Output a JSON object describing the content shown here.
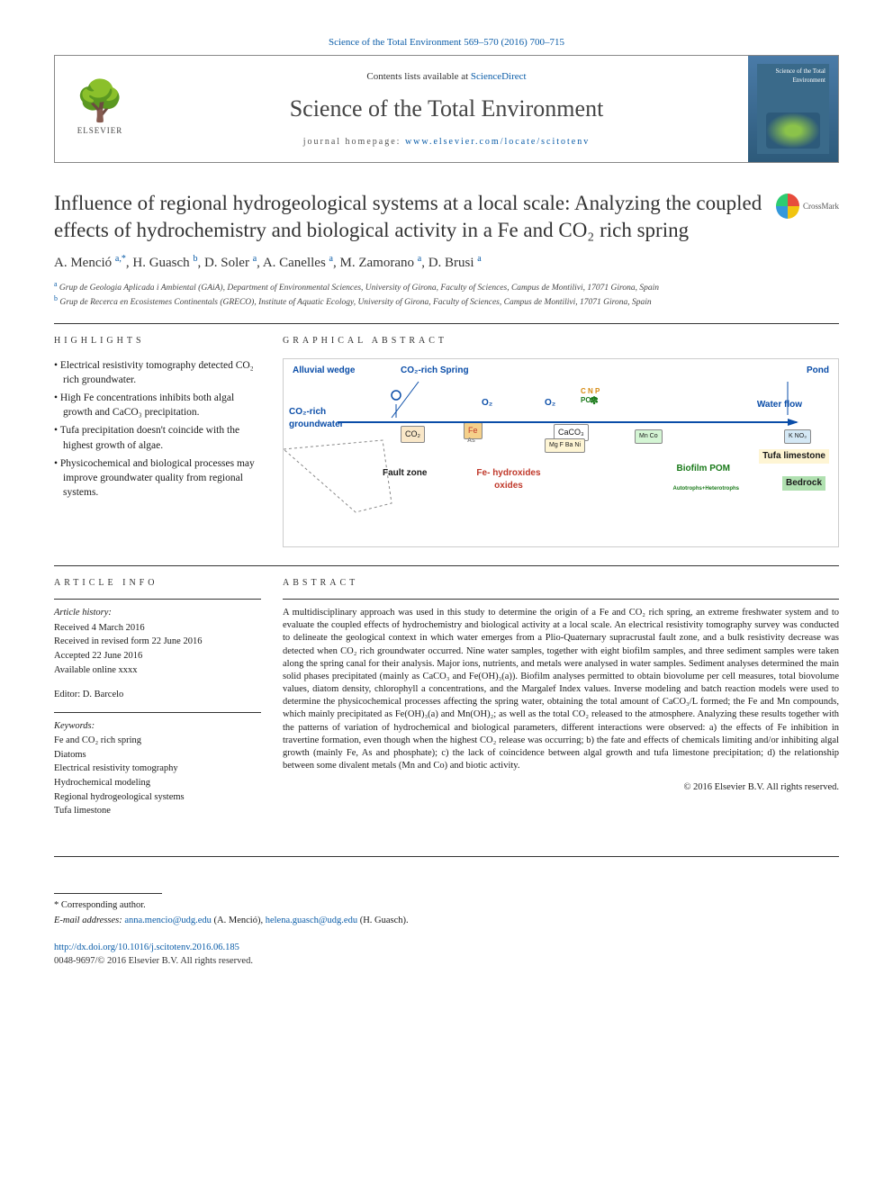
{
  "citation_top": "Science of the Total Environment 569–570 (2016) 700–715",
  "header": {
    "contents_prefix": "Contents lists available at ",
    "contents_link": "ScienceDirect",
    "journal_name": "Science of the Total Environment",
    "homepage_prefix": "journal homepage: ",
    "homepage_link": "www.elsevier.com/locate/scitotenv",
    "publisher_label": "ELSEVIER",
    "cover_text": "Science of the Total Environment"
  },
  "crossmark_label": "CrossMark",
  "title": "Influence of regional hydrogeological systems at a local scale: Analyzing the coupled effects of hydrochemistry and biological activity in a Fe and CO₂ rich spring",
  "authors_html": "A. Menció <sup>a,*</sup>, H. Guasch <sup>b</sup>, D. Soler <sup>a</sup>, A. Canelles <sup>a</sup>, M. Zamorano <sup>a</sup>, D. Brusi <sup>a</sup>",
  "authors": [
    {
      "name": "A. Menció",
      "aff": "a,*"
    },
    {
      "name": "H. Guasch",
      "aff": "b"
    },
    {
      "name": "D. Soler",
      "aff": "a"
    },
    {
      "name": "A. Canelles",
      "aff": "a"
    },
    {
      "name": "M. Zamorano",
      "aff": "a"
    },
    {
      "name": "D. Brusi",
      "aff": "a"
    }
  ],
  "affiliations": [
    {
      "sup": "a",
      "text": "Grup de Geologia Aplicada i Ambiental (GAiA), Department of Environmental Sciences, University of Girona, Faculty of Sciences, Campus de Montilivi, 17071 Girona, Spain"
    },
    {
      "sup": "b",
      "text": "Grup de Recerca en Ecosistemes Continentals (GRECO), Institute of Aquatic Ecology, University of Girona, Faculty of Sciences, Campus de Montilivi, 17071 Girona, Spain"
    }
  ],
  "highlights": {
    "head": "HIGHLIGHTS",
    "items": [
      "Electrical resistivity tomography detected CO₂ rich groundwater.",
      "High Fe concentrations inhibits both algal growth and CaCO₃ precipitation.",
      "Tufa precipitation doesn't coincide with the highest growth of algae.",
      "Physicochemical and biological processes may improve groundwater quality from regional systems."
    ]
  },
  "graphical_abstract": {
    "head": "GRAPHICAL ABSTRACT",
    "labels": {
      "alluvial": "Alluvial wedge",
      "co2_spring": "CO₂-rich Spring",
      "pond": "Pond",
      "co2_gw": "CO₂-rich groundwater",
      "water_flow": "Water flow",
      "fault": "Fault zone",
      "fe_hydrox": "Fe- hydroxides oxides",
      "biofilm": "Biofilm POM",
      "bedrock": "Bedrock",
      "tufa": "Tufa limestone",
      "o2_1": "O₂",
      "o2_2": "O₂",
      "co2": "CO₂",
      "fe": "Fe",
      "caco3": "CaCO₃",
      "cnp": "C N P",
      "pom": "POM",
      "mg_f_ba": "Mg F Ba Ni",
      "mn_co": "Mn Co",
      "k_no3": "K NO₃",
      "as": "As",
      "auto_hetero": "Autotrophs+Heterotrophs"
    },
    "colors": {
      "blue": "#0a4da8",
      "red": "#c0392b",
      "green": "#1a7a1a",
      "orange": "#d68910",
      "tufa_bg": "#fef5d4",
      "bedrock_bg": "#b0e0b0",
      "fe_bg": "#f5d08a"
    }
  },
  "article_info": {
    "head": "ARTICLE INFO",
    "history_title": "Article history:",
    "history": [
      "Received 4 March 2016",
      "Received in revised form 22 June 2016",
      "Accepted 22 June 2016",
      "Available online xxxx"
    ],
    "editor_label": "Editor: D. Barcelo",
    "keywords_title": "Keywords:",
    "keywords": [
      "Fe and CO₂ rich spring",
      "Diatoms",
      "Electrical resistivity tomography",
      "Hydrochemical modeling",
      "Regional hydrogeological systems",
      "Tufa limestone"
    ]
  },
  "abstract": {
    "head": "ABSTRACT",
    "text": "A multidisciplinary approach was used in this study to determine the origin of a Fe and CO₂ rich spring, an extreme freshwater system and to evaluate the coupled effects of hydrochemistry and biological activity at a local scale. An electrical resistivity tomography survey was conducted to delineate the geological context in which water emerges from a Plio-Quaternary supracrustal fault zone, and a bulk resistivity decrease was detected when CO₂ rich groundwater occurred. Nine water samples, together with eight biofilm samples, and three sediment samples were taken along the spring canal for their analysis. Major ions, nutrients, and metals were analysed in water samples. Sediment analyses determined the main solid phases precipitated (mainly as CaCO₃ and Fe(OH)₃(a)). Biofilm analyses permitted to obtain biovolume per cell measures, total biovolume values, diatom density, chlorophyll a concentrations, and the Margalef Index values. Inverse modeling and batch reaction models were used to determine the physicochemical processes affecting the spring water, obtaining the total amount of CaCO₃/L formed; the Fe and Mn compounds, which mainly precipitated as Fe(OH)₃(a) and Mn(OH)₂; as well as the total CO₂ released to the atmosphere. Analyzing these results together with the patterns of variation of hydrochemical and biological parameters, different interactions were observed: a) the effects of Fe inhibition in travertine formation, even though when the highest CO₂ release was occurring; b) the fate and effects of chemicals limiting and/or inhibiting algal growth (mainly Fe, As and phosphate); c) the lack of coincidence between algal growth and tufa limestone precipitation; d) the relationship between some divalent metals (Mn and Co) and biotic activity.",
    "copyright": "© 2016 Elsevier B.V. All rights reserved."
  },
  "footer": {
    "corresponding": "* Corresponding author.",
    "email_label": "E-mail addresses: ",
    "email1": "anna.mencio@udg.edu",
    "email1_owner": " (A. Menció), ",
    "email2": "helena.guasch@udg.edu",
    "email2_owner": " (H. Guasch).",
    "doi": "http://dx.doi.org/10.1016/j.scitotenv.2016.06.185",
    "issn": "0048-9697/© 2016 Elsevier B.V. All rights reserved."
  }
}
